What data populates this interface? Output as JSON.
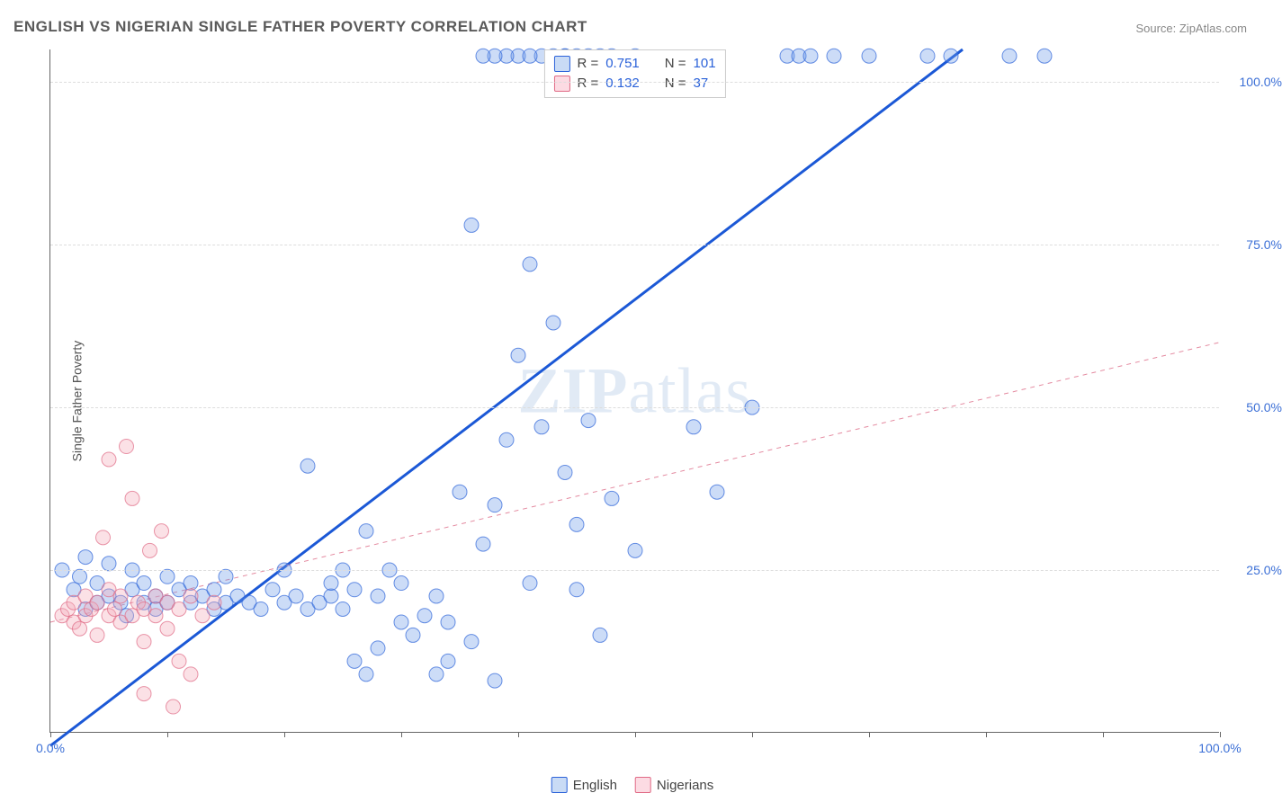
{
  "title": "ENGLISH VS NIGERIAN SINGLE FATHER POVERTY CORRELATION CHART",
  "source_label": "Source: ZipAtlas.com",
  "ylabel": "Single Father Poverty",
  "watermark": "ZIPatlas",
  "chart": {
    "type": "scatter",
    "background_color": "#ffffff",
    "grid_color": "#dddddd",
    "grid_dash": "4,4",
    "axis_color": "#666666",
    "tick_label_color": "#3b6fd6",
    "tick_fontsize": 14,
    "xlim": [
      0,
      100
    ],
    "ylim": [
      0,
      105
    ],
    "xticks": [
      0,
      10,
      20,
      30,
      40,
      50,
      60,
      70,
      80,
      90,
      100
    ],
    "xtick_labels": {
      "0": "0.0%",
      "100": "100.0%"
    },
    "yticks": [
      25,
      50,
      75,
      100
    ],
    "ytick_labels": {
      "25": "25.0%",
      "50": "50.0%",
      "75": "75.0%",
      "100": "100.0%"
    },
    "marker_radius": 8,
    "marker_opacity": 0.35,
    "marker_stroke_opacity": 0.7,
    "series": [
      {
        "name": "English",
        "color": "#6c9ce8",
        "stroke": "#2b62d9",
        "R": "0.751",
        "N": "101",
        "trend": {
          "x1": 0,
          "y1": -2,
          "x2": 78,
          "y2": 105,
          "width": 3,
          "dash": "none",
          "color": "#1b58d6"
        },
        "points": [
          [
            1,
            25
          ],
          [
            2,
            22
          ],
          [
            2.5,
            24
          ],
          [
            3,
            19
          ],
          [
            3,
            27
          ],
          [
            4,
            20
          ],
          [
            4,
            23
          ],
          [
            5,
            21
          ],
          [
            5,
            26
          ],
          [
            6,
            20
          ],
          [
            6.5,
            18
          ],
          [
            7,
            22
          ],
          [
            7,
            25
          ],
          [
            8,
            20
          ],
          [
            8,
            23
          ],
          [
            9,
            21
          ],
          [
            9,
            19
          ],
          [
            10,
            20
          ],
          [
            10,
            24
          ],
          [
            11,
            22
          ],
          [
            12,
            20
          ],
          [
            12,
            23
          ],
          [
            13,
            21
          ],
          [
            14,
            19
          ],
          [
            14,
            22
          ],
          [
            15,
            20
          ],
          [
            15,
            24
          ],
          [
            16,
            21
          ],
          [
            17,
            20
          ],
          [
            18,
            19
          ],
          [
            19,
            22
          ],
          [
            20,
            20
          ],
          [
            20,
            25
          ],
          [
            21,
            21
          ],
          [
            22,
            19
          ],
          [
            22,
            41
          ],
          [
            23,
            20
          ],
          [
            24,
            21
          ],
          [
            24,
            23
          ],
          [
            25,
            19
          ],
          [
            25,
            25
          ],
          [
            26,
            22
          ],
          [
            26,
            11
          ],
          [
            27,
            31
          ],
          [
            27,
            9
          ],
          [
            28,
            13
          ],
          [
            28,
            21
          ],
          [
            29,
            25
          ],
          [
            30,
            17
          ],
          [
            30,
            23
          ],
          [
            31,
            15
          ],
          [
            32,
            18
          ],
          [
            33,
            21
          ],
          [
            33,
            9
          ],
          [
            34,
            11
          ],
          [
            34,
            17
          ],
          [
            35,
            37
          ],
          [
            36,
            78
          ],
          [
            36,
            14
          ],
          [
            37,
            29
          ],
          [
            38,
            35
          ],
          [
            38,
            8
          ],
          [
            39,
            45
          ],
          [
            40,
            58
          ],
          [
            41,
            72
          ],
          [
            41,
            23
          ],
          [
            42,
            47
          ],
          [
            43,
            63
          ],
          [
            44,
            40
          ],
          [
            45,
            22
          ],
          [
            45,
            32
          ],
          [
            46,
            48
          ],
          [
            47,
            15
          ],
          [
            48,
            36
          ],
          [
            50,
            28
          ],
          [
            55,
            47
          ],
          [
            57,
            37
          ],
          [
            60,
            50
          ],
          [
            63,
            104
          ],
          [
            64,
            104
          ],
          [
            65,
            104
          ],
          [
            67,
            104
          ],
          [
            70,
            104
          ],
          [
            75,
            104
          ],
          [
            77,
            104
          ],
          [
            82,
            104
          ],
          [
            85,
            104
          ],
          [
            40,
            104
          ],
          [
            42,
            104
          ],
          [
            44,
            104
          ],
          [
            45,
            104
          ],
          [
            46,
            104
          ],
          [
            47,
            104
          ],
          [
            48,
            104
          ],
          [
            50,
            104
          ],
          [
            44,
            104
          ],
          [
            39,
            104
          ],
          [
            41,
            104
          ],
          [
            43,
            104
          ],
          [
            38,
            104
          ],
          [
            37,
            104
          ]
        ]
      },
      {
        "name": "Nigerians",
        "color": "#f4a9b8",
        "stroke": "#e06a85",
        "R": "0.132",
        "N": "37",
        "trend": {
          "x1": 0,
          "y1": 17,
          "x2": 100,
          "y2": 60,
          "width": 1,
          "dash": "5,5",
          "color": "#e48aa0"
        },
        "points": [
          [
            1,
            18
          ],
          [
            1.5,
            19
          ],
          [
            2,
            17
          ],
          [
            2,
            20
          ],
          [
            2.5,
            16
          ],
          [
            3,
            18
          ],
          [
            3,
            21
          ],
          [
            3.5,
            19
          ],
          [
            4,
            20
          ],
          [
            4,
            15
          ],
          [
            4.5,
            30
          ],
          [
            5,
            18
          ],
          [
            5,
            22
          ],
          [
            5,
            42
          ],
          [
            5.5,
            19
          ],
          [
            6,
            17
          ],
          [
            6,
            21
          ],
          [
            6.5,
            44
          ],
          [
            7,
            18
          ],
          [
            7,
            36
          ],
          [
            7.5,
            20
          ],
          [
            8,
            19
          ],
          [
            8,
            14
          ],
          [
            8,
            6
          ],
          [
            8.5,
            28
          ],
          [
            9,
            21
          ],
          [
            9,
            18
          ],
          [
            9.5,
            31
          ],
          [
            10,
            20
          ],
          [
            10,
            16
          ],
          [
            10.5,
            4
          ],
          [
            11,
            19
          ],
          [
            11,
            11
          ],
          [
            12,
            9
          ],
          [
            12,
            21
          ],
          [
            13,
            18
          ],
          [
            14,
            20
          ]
        ]
      }
    ]
  },
  "legend_top": {
    "rows": [
      {
        "swatch_fill": "#c9dbf5",
        "swatch_stroke": "#2b62d9",
        "r_label": "R =",
        "r_val": "0.751",
        "n_label": "N =",
        "n_val": "101"
      },
      {
        "swatch_fill": "#fcdbe3",
        "swatch_stroke": "#e06a85",
        "r_label": "R =",
        "r_val": "0.132",
        "n_label": "N =",
        "n_val": "37"
      }
    ]
  },
  "legend_bottom": {
    "items": [
      {
        "swatch_fill": "#c9dbf5",
        "swatch_stroke": "#2b62d9",
        "label": "English"
      },
      {
        "swatch_fill": "#fcdbe3",
        "swatch_stroke": "#e06a85",
        "label": "Nigerians"
      }
    ]
  }
}
